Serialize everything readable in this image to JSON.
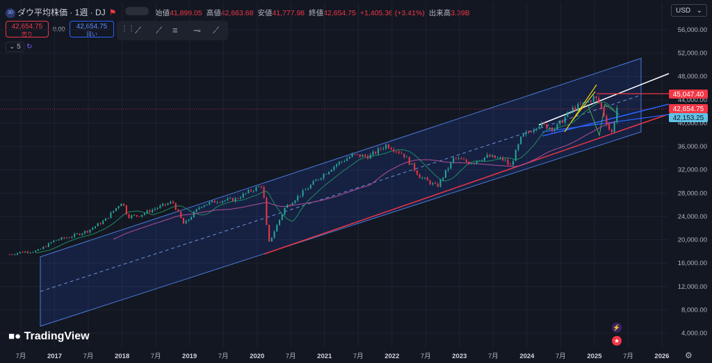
{
  "header": {
    "symbol_badge": "30",
    "symbol_title": "ダウ平均株価 · 1週 · DJ",
    "ohlc": [
      {
        "label": "始値",
        "value": "41,899.05"
      },
      {
        "label": "高値",
        "value": "42,663.68"
      },
      {
        "label": "安値",
        "value": "41,777.98"
      },
      {
        "label": "終値",
        "value": "42,654.75"
      },
      {
        "label": "",
        "value": "+1,405.36 (+3.41%)"
      },
      {
        "label": "出来高",
        "value": "3.39B"
      }
    ],
    "currency": "USD",
    "currency_icon": "chevron-down-icon"
  },
  "trade": {
    "sell_price": "42,654.75",
    "sell_label": "売り",
    "spread": "0.00",
    "buy_price": "42,654.75",
    "buy_label": "買い"
  },
  "indicators": {
    "count_label": "5",
    "toggle_icon": "chevron-down-icon",
    "sync_icon": "link-icon"
  },
  "drawing_tools": [
    "trend-line-icon",
    "ray-icon",
    "parallel-channel-icon",
    "horizontal-ray-icon",
    "extended-line-icon"
  ],
  "brand": {
    "name": "TradingView"
  },
  "price_tags": {
    "red_line": "45,047.40",
    "current": "42,654.75",
    "blue_line": "42,153.25"
  },
  "colors": {
    "background": "#131722",
    "up": "#26a69a",
    "down": "#f23645",
    "channel": "#2962ff",
    "tag_red": "#f23645",
    "tag_blue": "#5fc2e6"
  },
  "chart_data": {
    "type": "line",
    "style": "candlestick",
    "title": "",
    "xlabel": "",
    "ylabel": "",
    "ylim": [
      2000,
      58000
    ],
    "y_ticks": [
      "56,000.00",
      "52,000.00",
      "48,000.00",
      "44,000.00",
      "40,000.00",
      "36,000.00",
      "32,000.00",
      "28,000.00",
      "24,000.00",
      "20,000.00",
      "16,000.00",
      "12,000.00",
      "8,000.00",
      "4,000.00"
    ],
    "x_ticks": [
      "7月",
      "2017",
      "7月",
      "2018",
      "7月",
      "2019",
      "7月",
      "2020",
      "7月",
      "2021",
      "7月",
      "2022",
      "7月",
      "2023",
      "7月",
      "2024",
      "7月",
      "2025",
      "7月",
      "2026"
    ],
    "x": [
      "2016-05",
      "2016-07",
      "2016-10",
      "2017-01",
      "2017-04",
      "2017-07",
      "2017-10",
      "2018-01",
      "2018-02",
      "2018-04",
      "2018-07",
      "2018-10",
      "2018-12",
      "2019-03",
      "2019-06",
      "2019-09",
      "2019-12",
      "2020-02",
      "2020-03",
      "2020-06",
      "2020-09",
      "2020-12",
      "2021-03",
      "2021-06",
      "2021-09",
      "2021-12",
      "2022-03",
      "2022-06",
      "2022-09",
      "2022-12",
      "2023-03",
      "2023-06",
      "2023-09",
      "2023-10",
      "2023-12",
      "2024-03",
      "2024-06",
      "2024-09",
      "2024-12",
      "2025-01",
      "2025-02",
      "2025-04",
      "2025-05"
    ],
    "series": [
      {
        "values": [
          17500,
          17900,
          18100,
          19900,
          20600,
          21600,
          23400,
          26600,
          24000,
          24200,
          25400,
          26500,
          22600,
          25900,
          26700,
          26900,
          28500,
          29400,
          19200,
          25600,
          28000,
          30600,
          32900,
          34500,
          34300,
          36300,
          34700,
          30800,
          29100,
          34000,
          33200,
          34300,
          33700,
          32500,
          37500,
          39800,
          39100,
          42300,
          43800,
          44500,
          43200,
          38000,
          42654.75
        ]
      }
    ]
  }
}
